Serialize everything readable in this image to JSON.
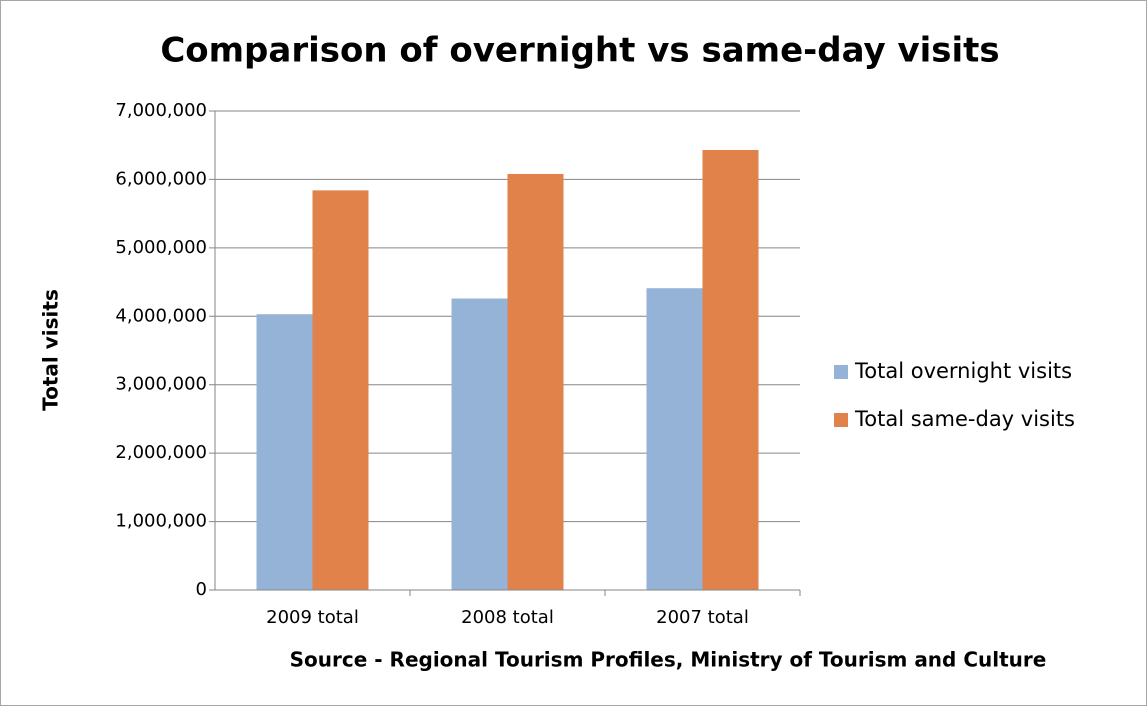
{
  "chart_data": {
    "type": "bar",
    "title": "Comparison of overnight vs same-day visits",
    "x_label": "Source - Regional Tourism Profiles, Ministry of Tourism and Culture",
    "y_label": "Total visits",
    "categories": [
      "2009 total",
      "2008 total",
      "2007 total"
    ],
    "series": [
      {
        "name": "Total overnight visits",
        "color": "#95b3d7",
        "values": [
          4030000,
          4260000,
          4410000
        ]
      },
      {
        "name": "Total same-day visits",
        "color": "#e0824a",
        "values": [
          5840000,
          6080000,
          6430000
        ]
      }
    ],
    "ylim": [
      0,
      7000000
    ],
    "yticks": [
      0,
      {
        "value": 1000000,
        "label": "1,000,000"
      },
      {
        "value": 2000000,
        "label": "2,000,000"
      },
      {
        "value": 3000000,
        "label": "3,000,000"
      },
      {
        "value": 4000000,
        "label": "4,000,000"
      },
      {
        "value": 5000000,
        "label": "5,000,000"
      },
      {
        "value": 6000000,
        "label": "6,000,000"
      },
      {
        "value": 7000000,
        "label": "7,000,000"
      }
    ],
    "grid": true,
    "legend": "right"
  }
}
